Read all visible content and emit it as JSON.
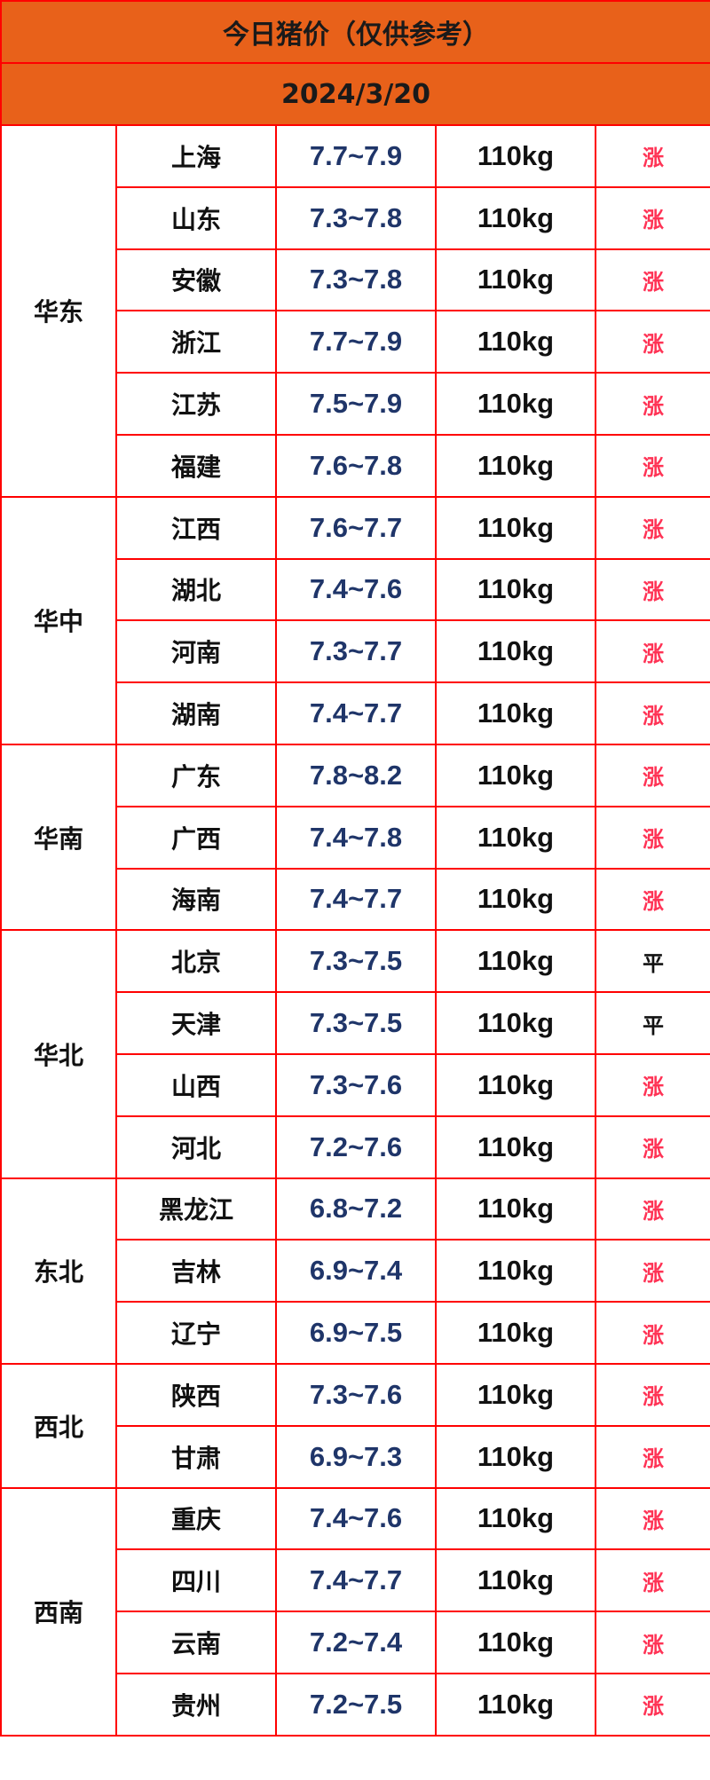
{
  "title": "今日猪价（仅供参考）",
  "date": "2024/3/20",
  "colors": {
    "header_bg": "#e8611a",
    "border": "#ff0000",
    "price": "#1f3569",
    "rise": "#ff3355",
    "flat": "#111111"
  },
  "groups": [
    {
      "region": "华东",
      "rows": [
        {
          "province": "上海",
          "price": "7.7~7.9",
          "weight": "110kg",
          "trend": "涨"
        },
        {
          "province": "山东",
          "price": "7.3~7.8",
          "weight": "110kg",
          "trend": "涨"
        },
        {
          "province": "安徽",
          "price": "7.3~7.8",
          "weight": "110kg",
          "trend": "涨"
        },
        {
          "province": "浙江",
          "price": "7.7~7.9",
          "weight": "110kg",
          "trend": "涨"
        },
        {
          "province": "江苏",
          "price": "7.5~7.9",
          "weight": "110kg",
          "trend": "涨"
        },
        {
          "province": "福建",
          "price": "7.6~7.8",
          "weight": "110kg",
          "trend": "涨"
        }
      ]
    },
    {
      "region": "华中",
      "rows": [
        {
          "province": "江西",
          "price": "7.6~7.7",
          "weight": "110kg",
          "trend": "涨"
        },
        {
          "province": "湖北",
          "price": "7.4~7.6",
          "weight": "110kg",
          "trend": "涨"
        },
        {
          "province": "河南",
          "price": "7.3~7.7",
          "weight": "110kg",
          "trend": "涨"
        },
        {
          "province": "湖南",
          "price": "7.4~7.7",
          "weight": "110kg",
          "trend": "涨"
        }
      ]
    },
    {
      "region": "华南",
      "rows": [
        {
          "province": "广东",
          "price": "7.8~8.2",
          "weight": "110kg",
          "trend": "涨"
        },
        {
          "province": "广西",
          "price": "7.4~7.8",
          "weight": "110kg",
          "trend": "涨"
        },
        {
          "province": "海南",
          "price": "7.4~7.7",
          "weight": "110kg",
          "trend": "涨"
        }
      ]
    },
    {
      "region": "华北",
      "rows": [
        {
          "province": "北京",
          "price": "7.3~7.5",
          "weight": "110kg",
          "trend": "平"
        },
        {
          "province": "天津",
          "price": "7.3~7.5",
          "weight": "110kg",
          "trend": "平"
        },
        {
          "province": "山西",
          "price": "7.3~7.6",
          "weight": "110kg",
          "trend": "涨"
        },
        {
          "province": "河北",
          "price": "7.2~7.6",
          "weight": "110kg",
          "trend": "涨"
        }
      ]
    },
    {
      "region": "东北",
      "rows": [
        {
          "province": "黑龙江",
          "price": "6.8~7.2",
          "weight": "110kg",
          "trend": "涨"
        },
        {
          "province": "吉林",
          "price": "6.9~7.4",
          "weight": "110kg",
          "trend": "涨"
        },
        {
          "province": "辽宁",
          "price": "6.9~7.5",
          "weight": "110kg",
          "trend": "涨"
        }
      ]
    },
    {
      "region": "西北",
      "rows": [
        {
          "province": "陕西",
          "price": "7.3~7.6",
          "weight": "110kg",
          "trend": "涨"
        },
        {
          "province": "甘肃",
          "price": "6.9~7.3",
          "weight": "110kg",
          "trend": "涨"
        }
      ]
    },
    {
      "region": "西南",
      "rows": [
        {
          "province": "重庆",
          "price": "7.4~7.6",
          "weight": "110kg",
          "trend": "涨"
        },
        {
          "province": "四川",
          "price": "7.4~7.7",
          "weight": "110kg",
          "trend": "涨"
        },
        {
          "province": "云南",
          "price": "7.2~7.4",
          "weight": "110kg",
          "trend": "涨"
        },
        {
          "province": "贵州",
          "price": "7.2~7.5",
          "weight": "110kg",
          "trend": "涨"
        }
      ]
    }
  ]
}
